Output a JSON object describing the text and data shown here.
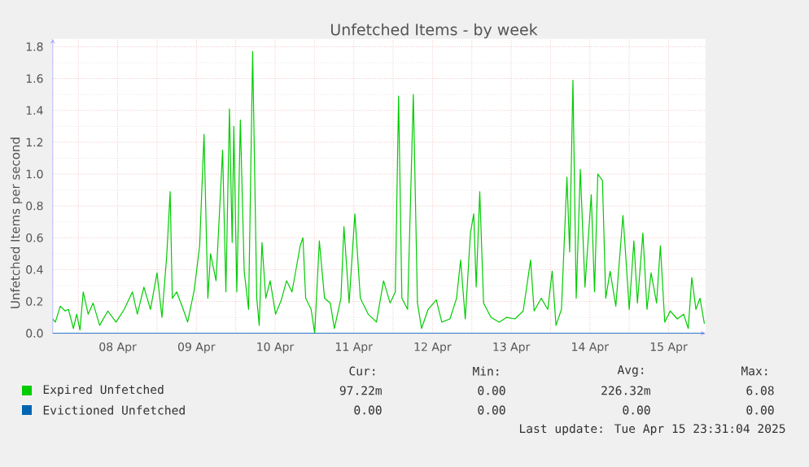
{
  "chart_data": {
    "type": "line",
    "title": "Unfetched Items - by week",
    "ylabel": "Unfetched Items per second",
    "xlim": [
      "2025-04-07T16:12",
      "2025-04-15T23:15"
    ],
    "ylim": [
      0,
      1.85
    ],
    "xticks": [
      {
        "value": "2025-04-08T00:00",
        "label": null
      },
      {
        "value": "2025-04-08T12:00",
        "label": "08 Apr"
      },
      {
        "value": "2025-04-09T00:00",
        "label": null
      },
      {
        "value": "2025-04-09T12:00",
        "label": "09 Apr"
      },
      {
        "value": "2025-04-10T00:00",
        "label": null
      },
      {
        "value": "2025-04-10T12:00",
        "label": "10 Apr"
      },
      {
        "value": "2025-04-11T00:00",
        "label": null
      },
      {
        "value": "2025-04-11T12:00",
        "label": "11 Apr"
      },
      {
        "value": "2025-04-12T00:00",
        "label": null
      },
      {
        "value": "2025-04-12T12:00",
        "label": "12 Apr"
      },
      {
        "value": "2025-04-13T00:00",
        "label": null
      },
      {
        "value": "2025-04-13T12:00",
        "label": "13 Apr"
      },
      {
        "value": "2025-04-14T00:00",
        "label": null
      },
      {
        "value": "2025-04-14T12:00",
        "label": "14 Apr"
      },
      {
        "value": "2025-04-15T00:00",
        "label": null
      },
      {
        "value": "2025-04-15T12:00",
        "label": "15 Apr"
      }
    ],
    "yticks": [
      {
        "value": 0,
        "label": "0.0"
      },
      0.2,
      0.4,
      0.6,
      0.8,
      {
        "value": 1,
        "label": "1.0"
      },
      1.2,
      1.4,
      1.6,
      1.8
    ],
    "grid": true,
    "legend": "bottom",
    "x": [
      "2025-04-07T16:12",
      "2025-04-07T17:00",
      "2025-04-07T18:30",
      "2025-04-07T20:00",
      "2025-04-07T21:00",
      "2025-04-07T22:30",
      "2025-04-07T23:30",
      "2025-04-08T00:30",
      "2025-04-08T01:30",
      "2025-04-08T03:00",
      "2025-04-08T04:30",
      "2025-04-08T06:30",
      "2025-04-08T09:00",
      "2025-04-08T11:30",
      "2025-04-08T14:00",
      "2025-04-08T16:30",
      "2025-04-08T18:00",
      "2025-04-08T20:00",
      "2025-04-08T22:00",
      "2025-04-09T00:00",
      "2025-04-09T01:30",
      "2025-04-09T03:00",
      "2025-04-09T04:00",
      "2025-04-09T04:40",
      "2025-04-09T06:00",
      "2025-04-09T08:00",
      "2025-04-09T09:20",
      "2025-04-09T11:20",
      "2025-04-09T13:00",
      "2025-04-09T14:20",
      "2025-04-09T15:30",
      "2025-04-09T16:20",
      "2025-04-09T18:00",
      "2025-04-09T20:00",
      "2025-04-09T21:00",
      "2025-04-09T22:05",
      "2025-04-09T22:55",
      "2025-04-09T23:25",
      "2025-04-10T00:20",
      "2025-04-10T01:25",
      "2025-04-10T02:35",
      "2025-04-10T03:55",
      "2025-04-10T05:10",
      "2025-04-10T06:25",
      "2025-04-10T07:10",
      "2025-04-10T08:00",
      "2025-04-10T09:10",
      "2025-04-10T10:30",
      "2025-04-10T12:10",
      "2025-04-10T13:55",
      "2025-04-10T15:30",
      "2025-04-10T17:10",
      "2025-04-10T19:40",
      "2025-04-10T20:30",
      "2025-04-10T21:20",
      "2025-04-10T23:00",
      "2025-04-11T00:05",
      "2025-04-11T01:30",
      "2025-04-11T03:05",
      "2025-04-11T04:50",
      "2025-04-11T06:05",
      "2025-04-11T08:05",
      "2025-04-11T09:00",
      "2025-04-11T10:35",
      "2025-04-11T12:20",
      "2025-04-11T14:00",
      "2025-04-11T16:25",
      "2025-04-11T18:55",
      "2025-04-11T21:05",
      "2025-04-11T23:05",
      "2025-04-12T00:40",
      "2025-04-12T01:40",
      "2025-04-12T02:40",
      "2025-04-12T04:25",
      "2025-04-12T06:10",
      "2025-04-12T07:25",
      "2025-04-12T08:40",
      "2025-04-12T10:40",
      "2025-04-12T13:10",
      "2025-04-12T14:50",
      "2025-04-12T17:20",
      "2025-04-12T19:20",
      "2025-04-12T20:35",
      "2025-04-12T22:00",
      "2025-04-12T23:35",
      "2025-04-13T00:35",
      "2025-04-13T01:20",
      "2025-04-13T02:25",
      "2025-04-13T03:35",
      "2025-04-13T05:50",
      "2025-04-13T08:20",
      "2025-04-13T10:40",
      "2025-04-13T13:10",
      "2025-04-13T15:40",
      "2025-04-13T17:55",
      "2025-04-13T19:00",
      "2025-04-13T21:10",
      "2025-04-13T23:10",
      "2025-04-14T00:30",
      "2025-04-14T01:40",
      "2025-04-14T03:20",
      "2025-04-14T05:00",
      "2025-04-14T05:50",
      "2025-04-14T06:50",
      "2025-04-14T07:50",
      "2025-04-14T09:05",
      "2025-04-14T10:30",
      "2025-04-14T12:25",
      "2025-04-14T13:25",
      "2025-04-14T14:25",
      "2025-04-14T15:50",
      "2025-04-14T16:50",
      "2025-04-14T18:10",
      "2025-04-14T19:55",
      "2025-04-14T22:05",
      "2025-04-14T22:40",
      "2025-04-15T00:00",
      "2025-04-15T01:25",
      "2025-04-15T02:30",
      "2025-04-15T04:10",
      "2025-04-15T05:25",
      "2025-04-15T06:40",
      "2025-04-15T08:20",
      "2025-04-15T09:30",
      "2025-04-15T10:50",
      "2025-04-15T12:30",
      "2025-04-15T14:40",
      "2025-04-15T16:35",
      "2025-04-15T18:00",
      "2025-04-15T19:05",
      "2025-04-15T20:20",
      "2025-04-15T21:35",
      "2025-04-15T22:55"
    ],
    "series": [
      {
        "name": "Expired Unfetched",
        "color": "#00cc00",
        "values": [
          0.09,
          0.07,
          0.17,
          0.14,
          0.15,
          0.03,
          0.12,
          0.02,
          0.26,
          0.12,
          0.19,
          0.05,
          0.14,
          0.07,
          0.15,
          0.26,
          0.12,
          0.29,
          0.15,
          0.38,
          0.1,
          0.5,
          0.89,
          0.22,
          0.26,
          0.15,
          0.07,
          0.27,
          0.55,
          1.25,
          0.22,
          0.5,
          0.33,
          1.15,
          0.26,
          1.41,
          0.57,
          1.3,
          0.26,
          1.34,
          0.39,
          0.15,
          1.77,
          0.22,
          0.05,
          0.57,
          0.22,
          0.33,
          0.12,
          0.21,
          0.33,
          0.26,
          0.55,
          0.6,
          0.22,
          0.15,
          0.0,
          0.58,
          0.22,
          0.19,
          0.03,
          0.22,
          0.67,
          0.19,
          0.75,
          0.22,
          0.12,
          0.07,
          0.33,
          0.19,
          0.26,
          1.49,
          0.22,
          0.15,
          1.5,
          0.19,
          0.03,
          0.15,
          0.21,
          0.07,
          0.09,
          0.22,
          0.46,
          0.09,
          0.63,
          0.75,
          0.29,
          0.89,
          0.19,
          0.1,
          0.07,
          0.1,
          0.09,
          0.14,
          0.46,
          0.14,
          0.22,
          0.15,
          0.39,
          0.05,
          0.15,
          0.98,
          0.51,
          1.59,
          0.22,
          1.03,
          0.29,
          0.87,
          0.26,
          1.0,
          0.96,
          0.22,
          0.39,
          0.17,
          0.74,
          0.57,
          0.15,
          0.58,
          0.19,
          0.63,
          0.15,
          0.38,
          0.19,
          0.55,
          0.07,
          0.14,
          0.09,
          0.12,
          0.03,
          0.35,
          0.15,
          0.22,
          0.06
        ]
      },
      {
        "name": "Evictioned Unfetched",
        "color": "#0066b3",
        "x": [
          "2025-04-07T16:12",
          "2025-04-15T22:55"
        ],
        "values": [
          0,
          0
        ]
      }
    ],
    "annotations": [
      "Cur:",
      "Min:",
      "Avg:",
      "Max:",
      "97.22m",
      "0.00",
      "226.32m",
      "6.08",
      "0.00",
      "0.00",
      "0.00",
      "0.00",
      "Last update: Tue Apr 15 23:31:04 2025"
    ]
  }
}
